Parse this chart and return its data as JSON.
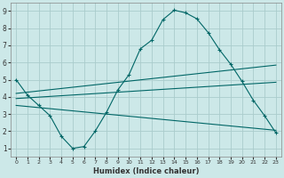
{
  "xlabel": "Humidex (Indice chaleur)",
  "background_color": "#cce8e8",
  "grid_color": "#aacccc",
  "line_color": "#006666",
  "xlim": [
    -0.5,
    23.5
  ],
  "ylim": [
    0.5,
    9.5
  ],
  "xticks": [
    0,
    1,
    2,
    3,
    4,
    5,
    6,
    7,
    8,
    9,
    10,
    11,
    12,
    13,
    14,
    15,
    16,
    17,
    18,
    19,
    20,
    21,
    22,
    23
  ],
  "yticks": [
    1,
    2,
    3,
    4,
    5,
    6,
    7,
    8,
    9
  ],
  "line1_x": [
    0,
    1,
    2,
    3,
    4,
    5,
    6,
    7,
    8,
    9,
    10,
    11,
    12,
    13,
    14,
    15,
    16,
    17,
    18,
    19,
    20,
    21,
    22,
    23
  ],
  "line1_y": [
    5.0,
    4.1,
    3.5,
    2.9,
    1.7,
    1.0,
    1.1,
    2.0,
    3.1,
    4.4,
    5.3,
    6.8,
    7.3,
    8.5,
    9.05,
    8.9,
    8.55,
    7.75,
    6.75,
    5.9,
    4.9,
    3.8,
    2.9,
    1.9
  ],
  "line2_x": [
    0,
    23
  ],
  "line2_y": [
    4.2,
    5.85
  ],
  "line3_x": [
    0,
    23
  ],
  "line3_y": [
    3.5,
    2.05
  ],
  "line4_x": [
    0,
    23
  ],
  "line4_y": [
    3.9,
    4.85
  ]
}
